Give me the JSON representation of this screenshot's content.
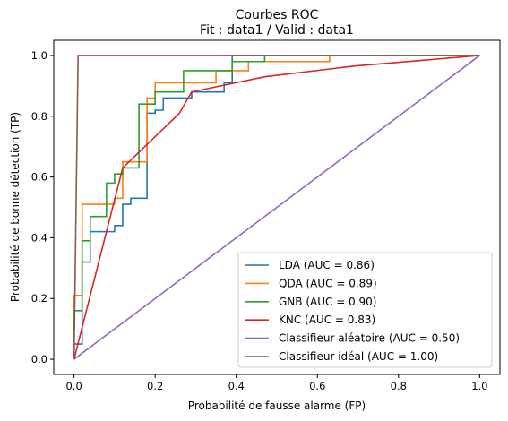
{
  "chart_data": {
    "type": "line",
    "title": "Courbes ROC",
    "subtitle": "Fit : data1  /  Valid : data1",
    "xlabel": "Probabilité de fausse alarme (FP)",
    "ylabel": "Probabilité de bonne détection (TP)",
    "xlim": [
      -0.05,
      1.05
    ],
    "ylim": [
      -0.05,
      1.05
    ],
    "xticks": [
      "0.0",
      "0.2",
      "0.4",
      "0.6",
      "0.8",
      "1.0"
    ],
    "yticks": [
      "0.0",
      "0.2",
      "0.4",
      "0.6",
      "0.8",
      "1.0"
    ],
    "grid": false,
    "legend_position": "bottom-right",
    "series": [
      {
        "name": "LDA (AUC = 0.86)",
        "color": "#1f77b4",
        "step": true,
        "x": [
          0.0,
          0.0,
          0.02,
          0.02,
          0.04,
          0.04,
          0.06,
          0.06,
          0.1,
          0.1,
          0.12,
          0.12,
          0.14,
          0.14,
          0.16,
          0.16,
          0.18,
          0.18,
          0.2,
          0.2,
          0.22,
          0.22,
          0.24,
          0.24,
          0.29,
          0.29,
          0.37,
          0.37,
          0.39,
          0.39,
          1.0
        ],
        "y": [
          0.0,
          0.05,
          0.05,
          0.32,
          0.32,
          0.42,
          0.42,
          0.42,
          0.42,
          0.44,
          0.44,
          0.51,
          0.51,
          0.53,
          0.53,
          0.53,
          0.53,
          0.81,
          0.81,
          0.82,
          0.82,
          0.86,
          0.86,
          0.86,
          0.86,
          0.88,
          0.88,
          0.91,
          0.91,
          1.0,
          1.0
        ]
      },
      {
        "name": "QDA (AUC = 0.89)",
        "color": "#ff7f0e",
        "step": true,
        "x": [
          0.0,
          0.0,
          0.02,
          0.02,
          0.1,
          0.1,
          0.12,
          0.12,
          0.14,
          0.14,
          0.18,
          0.18,
          0.2,
          0.2,
          0.24,
          0.24,
          0.31,
          0.31,
          0.35,
          0.35,
          0.43,
          0.43,
          0.63,
          0.63,
          1.0
        ],
        "y": [
          0.0,
          0.21,
          0.21,
          0.51,
          0.51,
          0.53,
          0.53,
          0.65,
          0.65,
          0.65,
          0.65,
          0.86,
          0.86,
          0.91,
          0.91,
          0.91,
          0.91,
          0.91,
          0.91,
          0.95,
          0.95,
          0.98,
          0.98,
          1.0,
          1.0
        ]
      },
      {
        "name": "GNB (AUC = 0.90)",
        "color": "#2ca02c",
        "step": true,
        "x": [
          0.0,
          0.0,
          0.02,
          0.02,
          0.04,
          0.04,
          0.06,
          0.06,
          0.08,
          0.08,
          0.1,
          0.1,
          0.12,
          0.12,
          0.16,
          0.16,
          0.18,
          0.18,
          0.2,
          0.2,
          0.24,
          0.24,
          0.27,
          0.27,
          0.39,
          0.39,
          0.47,
          0.47,
          1.0
        ],
        "y": [
          0.0,
          0.16,
          0.16,
          0.39,
          0.39,
          0.47,
          0.47,
          0.47,
          0.47,
          0.58,
          0.58,
          0.61,
          0.61,
          0.63,
          0.63,
          0.84,
          0.84,
          0.84,
          0.84,
          0.88,
          0.88,
          0.88,
          0.88,
          0.95,
          0.95,
          0.98,
          0.98,
          1.0,
          1.0
        ]
      },
      {
        "name": "KNC (AUC = 0.83)",
        "color": "#d62728",
        "step": false,
        "x": [
          0.0,
          0.12,
          0.26,
          0.29,
          0.47,
          0.69,
          1.0
        ],
        "y": [
          0.0,
          0.63,
          0.81,
          0.88,
          0.93,
          0.965,
          1.0
        ]
      },
      {
        "name": "Classifieur aléatoire (AUC = 0.50)",
        "color": "#9467bd",
        "step": false,
        "x": [
          0.0,
          1.0
        ],
        "y": [
          0.0,
          1.0
        ]
      },
      {
        "name": "Classifieur idéal (AUC = 1.00)",
        "color": "#8c564b",
        "step": false,
        "x": [
          0.0,
          0.01,
          1.0
        ],
        "y": [
          0.0,
          1.0,
          1.0
        ]
      }
    ]
  }
}
